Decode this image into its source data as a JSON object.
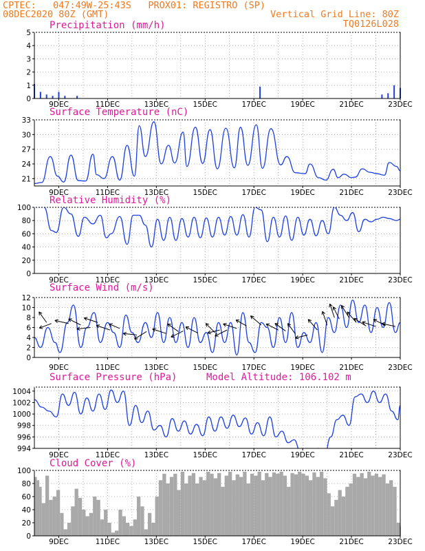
{
  "header": {
    "line1_left": "CPTEC:   047:49W-25:43S   PROX01: REGISTRO (SP)",
    "line2_left": "08DEC2020 80Z (GMT)",
    "line2_right": "Vertical Grid Line: 80Z",
    "line3_right": "TQ0126L028"
  },
  "colors": {
    "header": "#f07a1e",
    "title": "#e0199a",
    "line": "#1a3ee8",
    "bar": "#1a3ee8",
    "cloud": "#a9a9a9"
  },
  "chart_data": [
    {
      "type": "bar",
      "title": "Precipitation (mm/h)",
      "ylim": [
        0,
        5
      ],
      "yticks": [
        "0",
        "1",
        "2",
        "3",
        "4",
        "5"
      ],
      "xticks": [
        "9DEC",
        "11DEC",
        "13DEC",
        "15DEC",
        "17DEC",
        "19DEC",
        "21DEC",
        "23DEC"
      ],
      "x": [
        "08DEC 00Z",
        "08DEC 06Z",
        "08DEC 12Z",
        "08DEC 18Z",
        "09DEC 00Z",
        "09DEC 06Z",
        "09DEC 18Z",
        "17DEC 06Z",
        "22DEC 06Z",
        "22DEC 12Z",
        "22DEC 18Z",
        "23DEC 00Z"
      ],
      "values": [
        1.1,
        0.5,
        0.3,
        0.2,
        0.5,
        0.2,
        0.2,
        0.9,
        0.3,
        0.4,
        1.0,
        0.8
      ]
    },
    {
      "type": "line",
      "title": "Surface Temperature (nC)",
      "ylim": [
        19.5,
        33
      ],
      "yticks": [
        "21",
        "24",
        "27",
        "30",
        "33"
      ],
      "xticks": [
        "9DEC",
        "11DEC",
        "13DEC",
        "15DEC",
        "17DEC",
        "19DEC",
        "21DEC",
        "23DEC"
      ],
      "x": [
        8.0,
        8.3,
        8.65,
        8.95,
        9.2,
        9.5,
        9.8,
        10.1,
        10.4,
        10.55,
        10.85,
        11.2,
        11.5,
        11.8,
        12.1,
        12.3,
        12.55,
        12.9,
        13.2,
        13.5,
        13.75,
        14.1,
        14.25,
        14.6,
        14.9,
        15.2,
        15.5,
        15.85,
        16.2,
        16.45,
        16.75,
        17.1,
        17.35,
        17.7,
        18.1,
        18.35,
        18.7,
        19.1,
        19.3,
        19.65,
        19.95,
        20.25,
        20.45,
        20.7,
        21.0,
        21.15,
        21.45,
        21.75,
        22.05,
        22.35,
        22.55,
        22.85,
        23.0
      ],
      "values": [
        20,
        20.2,
        25.5,
        21.5,
        20.3,
        25.8,
        20.6,
        20.5,
        26.0,
        21.8,
        21.0,
        25.5,
        20.7,
        27.8,
        21.5,
        31.8,
        25.5,
        32.6,
        24.0,
        27.8,
        24.2,
        30.5,
        23.5,
        31.5,
        24.1,
        31.0,
        23.0,
        31.3,
        23.2,
        31.5,
        23.7,
        32.0,
        23.1,
        31.2,
        23.8,
        25.5,
        22.2,
        22.0,
        24.0,
        21.2,
        20.7,
        22.9,
        21.2,
        21.9,
        21.2,
        21.3,
        23.0,
        22.3,
        22.0,
        21.7,
        24.3,
        23.5,
        22.6
      ]
    },
    {
      "type": "line",
      "title": "Relative Humidity (%)",
      "ylim": [
        0,
        100
      ],
      "yticks": [
        "0",
        "20",
        "40",
        "60",
        "80",
        "100"
      ],
      "xticks": [
        "9DEC",
        "11DEC",
        "13DEC",
        "15DEC",
        "17DEC",
        "19DEC",
        "21DEC",
        "23DEC"
      ],
      "x": [
        8.0,
        8.4,
        8.7,
        8.9,
        9.2,
        9.5,
        9.8,
        10.05,
        10.4,
        10.7,
        10.95,
        11.15,
        11.5,
        11.8,
        12.05,
        12.3,
        12.55,
        12.8,
        13.05,
        13.3,
        13.55,
        13.8,
        14.05,
        14.3,
        14.55,
        14.8,
        15.05,
        15.3,
        15.55,
        15.8,
        16.05,
        16.3,
        16.55,
        16.8,
        17.05,
        17.3,
        17.55,
        17.8,
        18.05,
        18.3,
        18.55,
        18.8,
        19.05,
        19.3,
        19.55,
        19.8,
        20.05,
        20.3,
        20.55,
        20.8,
        21.05,
        21.3,
        21.55,
        21.8,
        22.05,
        22.3,
        22.55,
        22.85,
        23.0
      ],
      "values": [
        100,
        100,
        65,
        62,
        100,
        90,
        56,
        85,
        75,
        88,
        54,
        60,
        86,
        44,
        88,
        88,
        73,
        40,
        82,
        50,
        85,
        50,
        83,
        55,
        85,
        54,
        84,
        55,
        85,
        58,
        86,
        58,
        89,
        55,
        100,
        96,
        48,
        85,
        55,
        87,
        50,
        85,
        58,
        82,
        57,
        80,
        60,
        100,
        88,
        80,
        92,
        63,
        82,
        78,
        82,
        85,
        83,
        80,
        82
      ]
    },
    {
      "type": "line",
      "title": "Surface Wind (m/s)",
      "ylim": [
        0,
        12
      ],
      "yticks": [
        "0",
        "2",
        "4",
        "6",
        "8",
        "10",
        "12"
      ],
      "xticks": [
        "9DEC",
        "11DEC",
        "13DEC",
        "15DEC",
        "17DEC",
        "19DEC",
        "21DEC",
        "23DEC"
      ],
      "x": [
        8.0,
        8.25,
        8.55,
        8.85,
        9.05,
        9.35,
        9.6,
        9.9,
        10.15,
        10.45,
        10.7,
        11.0,
        11.25,
        11.5,
        11.75,
        12.0,
        12.25,
        12.55,
        12.8,
        13.05,
        13.3,
        13.55,
        13.8,
        14.05,
        14.3,
        14.55,
        14.8,
        15.05,
        15.3,
        15.55,
        15.8,
        16.05,
        16.3,
        16.55,
        16.8,
        17.05,
        17.3,
        17.55,
        17.8,
        18.05,
        18.3,
        18.55,
        18.8,
        19.05,
        19.3,
        19.55,
        19.8,
        20.05,
        20.3,
        20.55,
        20.8,
        21.05,
        21.3,
        21.55,
        21.8,
        22.05,
        22.3,
        22.55,
        22.8,
        23.0
      ],
      "values": [
        4,
        2,
        6,
        3,
        1,
        7,
        10.5,
        2,
        6,
        9,
        3,
        7,
        5,
        2,
        8.5,
        5,
        3,
        7,
        4,
        9,
        3,
        8,
        3,
        7,
        2,
        8,
        3,
        5,
        1,
        7,
        3,
        7,
        0.5,
        9,
        3,
        1,
        7,
        6,
        2,
        8,
        3,
        9,
        2,
        5,
        3,
        7,
        1,
        8,
        5,
        10.5,
        6,
        11.5,
        7,
        10.5,
        5,
        10,
        6,
        11,
        5,
        7
      ]
    },
    {
      "type": "line",
      "title": "Surface Pressure (hPa)",
      "subtitle": "Model Altitude: 106.102 m",
      "ylim": [
        994,
        1004.7
      ],
      "yticks": [
        "994",
        "996",
        "998",
        "1000",
        "1002",
        "1004"
      ],
      "xticks": [
        "9DEC",
        "11DEC",
        "13DEC",
        "15DEC",
        "17DEC",
        "19DEC",
        "21DEC",
        "23DEC"
      ],
      "x": [
        8.0,
        8.3,
        8.6,
        8.9,
        9.15,
        9.4,
        9.65,
        9.9,
        10.15,
        10.4,
        10.65,
        10.9,
        11.15,
        11.4,
        11.65,
        11.9,
        12.15,
        12.4,
        12.65,
        12.9,
        13.15,
        13.4,
        13.65,
        13.9,
        14.15,
        14.4,
        14.65,
        14.9,
        15.15,
        15.4,
        15.65,
        15.9,
        16.15,
        16.4,
        16.65,
        16.9,
        17.15,
        17.4,
        17.65,
        17.9,
        18.15,
        18.4,
        18.65,
        18.9,
        19.15,
        19.4,
        19.65,
        19.9,
        20.15,
        20.4,
        20.65,
        20.9,
        21.15,
        21.4,
        21.65,
        21.9,
        22.15,
        22.4,
        22.65,
        22.9,
        23.0
      ],
      "values": [
        1002.5,
        1001.2,
        1000.5,
        999.5,
        1003.5,
        1001.5,
        1003.8,
        1000.0,
        1002.8,
        1000.5,
        1003.5,
        1000.8,
        1004.2,
        1002.0,
        1004.0,
        998.0,
        1001.5,
        998.5,
        1000.5,
        997.2,
        998.0,
        996.0,
        999.2,
        997.0,
        998.8,
        996.5,
        998.2,
        996.2,
        999.5,
        997.0,
        999.5,
        997.5,
        999.8,
        997.8,
        999.3,
        996.5,
        998.5,
        996.2,
        999.5,
        996.0,
        997.0,
        995.0,
        995.5,
        993.5,
        994.0,
        993.8,
        994.0,
        993.0,
        996.0,
        999.0,
        999.8,
        998.0,
        1003.0,
        1003.5,
        1002.0,
        1004.0,
        1002.0,
        1003.5,
        1000.5,
        999.0,
        1001.5
      ]
    },
    {
      "type": "area",
      "title": "Cloud Cover (%)",
      "ylim": [
        0,
        100
      ],
      "yticks": [
        "0",
        "20",
        "40",
        "60",
        "80",
        "100"
      ],
      "xticks": [
        "9DEC",
        "11DEC",
        "13DEC",
        "15DEC",
        "17DEC",
        "19DEC",
        "21DEC",
        "23DEC"
      ],
      "x": [
        8.0,
        8.1,
        8.2,
        8.3,
        8.45,
        8.6,
        8.75,
        8.9,
        9.05,
        9.2,
        9.35,
        9.5,
        9.65,
        9.8,
        9.95,
        10.1,
        10.25,
        10.4,
        10.55,
        10.7,
        10.85,
        11.0,
        11.15,
        11.3,
        11.45,
        11.6,
        11.75,
        11.9,
        12.05,
        12.2,
        12.35,
        12.5,
        12.65,
        12.8,
        12.95,
        13.1,
        13.25,
        13.4,
        13.55,
        13.7,
        13.85,
        14.0,
        14.15,
        14.3,
        14.45,
        14.6,
        14.75,
        14.9,
        15.05,
        15.2,
        15.35,
        15.5,
        15.65,
        15.8,
        15.95,
        16.1,
        16.25,
        16.4,
        16.55,
        16.7,
        16.85,
        17.0,
        17.15,
        17.3,
        17.45,
        17.6,
        17.75,
        17.9,
        18.05,
        18.2,
        18.35,
        18.5,
        18.65,
        18.8,
        18.95,
        19.1,
        19.25,
        19.4,
        19.55,
        19.7,
        19.85,
        20.0,
        20.15,
        20.3,
        20.45,
        20.6,
        20.75,
        20.9,
        21.05,
        21.2,
        21.35,
        21.5,
        21.65,
        21.8,
        21.95,
        22.1,
        22.25,
        22.4,
        22.55,
        22.7,
        22.85,
        23.0
      ],
      "values": [
        90,
        85,
        75,
        50,
        92,
        55,
        60,
        70,
        35,
        10,
        20,
        45,
        72,
        58,
        40,
        30,
        35,
        60,
        55,
        25,
        40,
        20,
        5,
        8,
        40,
        30,
        20,
        15,
        25,
        60,
        45,
        10,
        35,
        20,
        60,
        85,
        95,
        80,
        90,
        95,
        70,
        98,
        80,
        92,
        96,
        80,
        90,
        85,
        98,
        95,
        88,
        96,
        75,
        92,
        98,
        85,
        94,
        90,
        98,
        80,
        95,
        92,
        98,
        85,
        96,
        90,
        97,
        95,
        98,
        92,
        75,
        96,
        94,
        98,
        95,
        92,
        85,
        97,
        90,
        98,
        88,
        65,
        45,
        55,
        70,
        60,
        75,
        80,
        95,
        90,
        96,
        88,
        98,
        92,
        95,
        90,
        94,
        80,
        85,
        75,
        20,
        15
      ]
    }
  ]
}
